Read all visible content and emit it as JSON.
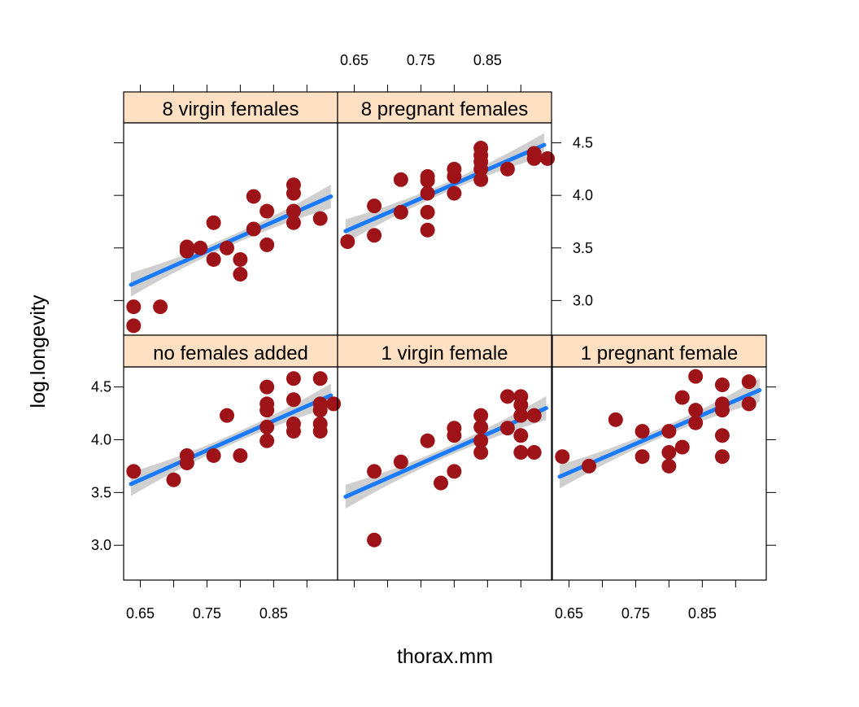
{
  "chart_data": {
    "type": "scatter",
    "layout": "lattice 3x2 conditioned panels",
    "xlabel": "thorax.mm",
    "ylabel": "log.longevity",
    "xlim": [
      0.625,
      0.946
    ],
    "ylim": [
      2.67,
      4.69
    ],
    "xticks": [
      0.65,
      0.75,
      0.85
    ],
    "xtick_labels": [
      "0.65",
      "0.75",
      "0.85"
    ],
    "yticks": [
      3.0,
      3.5,
      4.0,
      4.5
    ],
    "ytick_labels": [
      "3.0",
      "3.5",
      "4.0",
      "4.5"
    ],
    "grid": false,
    "colors": {
      "points": "#9e1318",
      "fit_line": "#1a7bff",
      "confidence_band": "#cfcfcf",
      "strip": "#ffe0c2"
    },
    "panels": [
      {
        "label": "8 virgin females",
        "row": "top",
        "col": 0,
        "x": [
          0.64,
          0.64,
          0.68,
          0.72,
          0.72,
          0.74,
          0.76,
          0.76,
          0.78,
          0.8,
          0.8,
          0.82,
          0.82,
          0.84,
          0.84,
          0.88,
          0.88,
          0.88,
          0.88,
          0.92
        ],
        "y": [
          2.94,
          2.76,
          2.94,
          3.51,
          3.47,
          3.5,
          3.74,
          3.39,
          3.5,
          3.39,
          3.25,
          3.99,
          3.68,
          3.85,
          3.53,
          4.1,
          4.02,
          3.85,
          3.74,
          3.78
        ],
        "fit": [
          [
            0.636,
            3.15
          ],
          [
            0.936,
            3.99
          ]
        ]
      },
      {
        "label": "8 pregnant females",
        "row": "top",
        "col": 1,
        "x": [
          0.64,
          0.68,
          0.68,
          0.72,
          0.72,
          0.76,
          0.76,
          0.76,
          0.76,
          0.76,
          0.8,
          0.8,
          0.8,
          0.84,
          0.84,
          0.84,
          0.84,
          0.84,
          0.88,
          0.92,
          0.92,
          0.94
        ],
        "y": [
          3.56,
          3.9,
          3.62,
          4.15,
          3.84,
          4.18,
          4.14,
          4.02,
          3.84,
          3.67,
          4.25,
          4.18,
          4.02,
          4.45,
          4.38,
          4.32,
          4.25,
          4.15,
          4.25,
          4.4,
          4.35,
          4.35
        ],
        "fit": [
          [
            0.637,
            3.66
          ],
          [
            0.935,
            4.48
          ]
        ]
      },
      {
        "label": "no females added",
        "row": "bottom",
        "col": 0,
        "x": [
          0.64,
          0.7,
          0.72,
          0.72,
          0.76,
          0.78,
          0.8,
          0.84,
          0.84,
          0.84,
          0.84,
          0.84,
          0.88,
          0.88,
          0.88,
          0.88,
          0.92,
          0.92,
          0.92,
          0.92,
          0.92,
          0.94
        ],
        "y": [
          3.7,
          3.62,
          3.85,
          3.78,
          3.85,
          4.23,
          3.85,
          4.5,
          4.34,
          4.28,
          4.12,
          3.99,
          4.58,
          4.38,
          4.15,
          4.08,
          4.58,
          4.34,
          4.28,
          4.15,
          4.08,
          4.34
        ],
        "fit": [
          [
            0.636,
            3.58
          ],
          [
            0.936,
            4.42
          ]
        ]
      },
      {
        "label": "1 virgin female",
        "row": "bottom",
        "col": 1,
        "x": [
          0.68,
          0.68,
          0.72,
          0.76,
          0.78,
          0.8,
          0.8,
          0.8,
          0.84,
          0.84,
          0.84,
          0.84,
          0.88,
          0.88,
          0.9,
          0.9,
          0.9,
          0.9,
          0.9,
          0.92,
          0.92
        ],
        "y": [
          3.05,
          3.7,
          3.79,
          3.99,
          3.59,
          4.11,
          4.04,
          3.7,
          4.23,
          4.12,
          3.99,
          3.88,
          4.11,
          4.41,
          4.41,
          4.33,
          4.23,
          4.04,
          3.88,
          4.23,
          3.88
        ],
        "fit": [
          [
            0.637,
            3.46
          ],
          [
            0.938,
            4.3
          ]
        ]
      },
      {
        "label": "1 pregnant female",
        "row": "bottom",
        "col": 2,
        "x": [
          0.64,
          0.68,
          0.72,
          0.76,
          0.76,
          0.8,
          0.8,
          0.8,
          0.82,
          0.82,
          0.84,
          0.84,
          0.84,
          0.88,
          0.88,
          0.88,
          0.88,
          0.88,
          0.92,
          0.92
        ],
        "y": [
          3.84,
          3.75,
          4.19,
          4.08,
          3.84,
          4.08,
          3.88,
          3.75,
          3.93,
          4.4,
          4.6,
          4.28,
          4.16,
          4.52,
          4.34,
          4.28,
          4.04,
          3.84,
          4.55,
          4.34
        ],
        "fit": [
          [
            0.636,
            3.65
          ],
          [
            0.936,
            4.47
          ]
        ]
      }
    ]
  }
}
